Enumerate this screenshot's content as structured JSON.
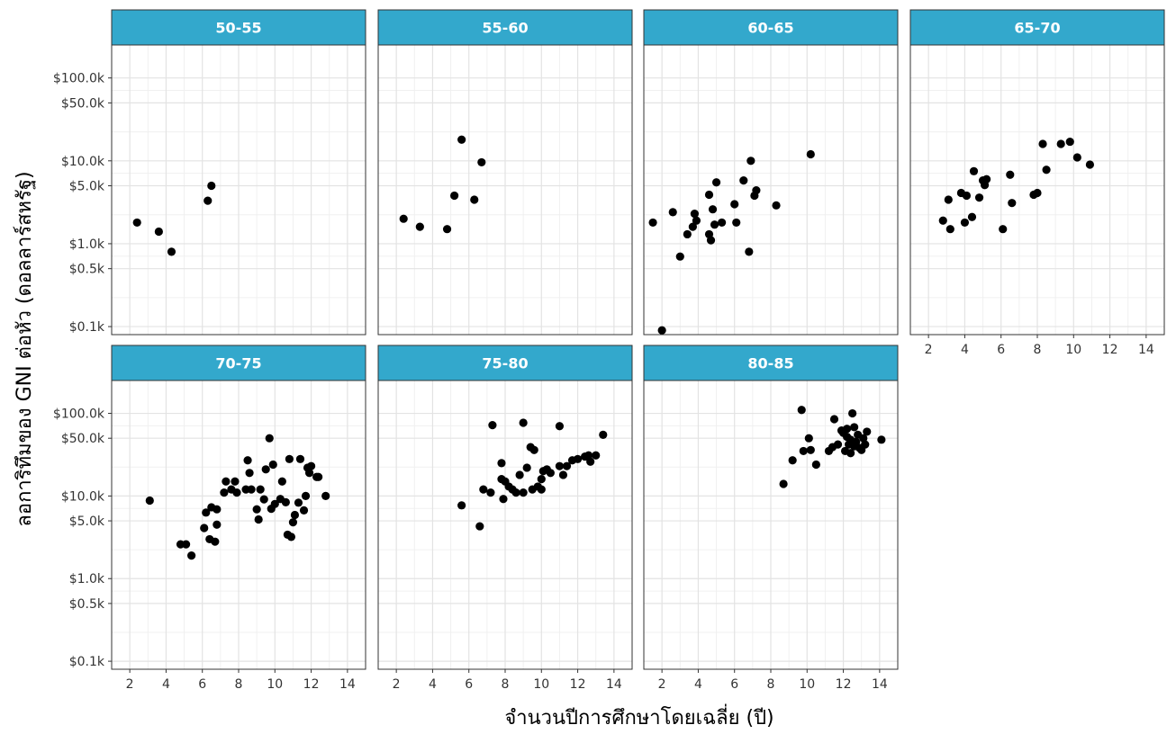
{
  "chart_data": {
    "type": "scatter",
    "xlabel": "จำนวนปีการศึกษาโดยเฉลี่ย (ปี)",
    "ylabel": "ลอการิทึมของ GNI ต่อหัว (ดอลลาร์สหรัฐ)",
    "x_scale": "linear",
    "y_scale": "log10",
    "xlim": [
      1,
      15
    ],
    "ylim": [
      0.08,
      250
    ],
    "x_ticks": [
      2,
      4,
      6,
      8,
      10,
      12,
      14
    ],
    "x_tick_labels": [
      "2",
      "4",
      "6",
      "8",
      "10",
      "12",
      "14"
    ],
    "y_ticks": [
      0.1,
      0.5,
      1,
      5,
      10,
      50,
      100
    ],
    "y_tick_labels": [
      "$0.1k",
      "$0.5k",
      "$1.0k",
      "$5.0k",
      "$10.0k",
      "$50.0k",
      "$100.0k"
    ],
    "y_unit_note": "values in thousands of US dollars",
    "grid": true,
    "strip_color": "#33a8cc",
    "point_color": "#000000",
    "panels": [
      {
        "label": "50-55",
        "points": [
          [
            2.4,
            1.8
          ],
          [
            3.6,
            1.4
          ],
          [
            4.3,
            0.8
          ],
          [
            6.3,
            3.3
          ],
          [
            6.5,
            5.0
          ]
        ]
      },
      {
        "label": "55-60",
        "points": [
          [
            2.4,
            2.0
          ],
          [
            3.3,
            1.6
          ],
          [
            4.8,
            1.5
          ],
          [
            5.2,
            3.8
          ],
          [
            5.6,
            18
          ],
          [
            6.3,
            3.4
          ],
          [
            6.7,
            9.6
          ]
        ]
      },
      {
        "label": "60-65",
        "points": [
          [
            1.5,
            1.8
          ],
          [
            2.0,
            0.09
          ],
          [
            2.6,
            2.4
          ],
          [
            3.0,
            0.7
          ],
          [
            3.4,
            1.3
          ],
          [
            3.7,
            1.6
          ],
          [
            3.8,
            2.3
          ],
          [
            3.9,
            1.9
          ],
          [
            4.6,
            3.9
          ],
          [
            4.6,
            1.3
          ],
          [
            4.7,
            1.1
          ],
          [
            4.8,
            2.6
          ],
          [
            4.9,
            1.7
          ],
          [
            5.0,
            5.5
          ],
          [
            5.3,
            1.8
          ],
          [
            6.0,
            3.0
          ],
          [
            6.1,
            1.8
          ],
          [
            6.5,
            5.8
          ],
          [
            6.8,
            0.8
          ],
          [
            6.9,
            10
          ],
          [
            7.1,
            3.8
          ],
          [
            7.2,
            4.4
          ],
          [
            8.3,
            2.9
          ],
          [
            10.2,
            12
          ]
        ]
      },
      {
        "label": "65-70",
        "points": [
          [
            2.8,
            1.9
          ],
          [
            3.1,
            3.4
          ],
          [
            3.2,
            1.5
          ],
          [
            3.8,
            4.1
          ],
          [
            4.0,
            1.8
          ],
          [
            4.1,
            3.8
          ],
          [
            4.4,
            2.1
          ],
          [
            4.5,
            7.5
          ],
          [
            4.8,
            3.6
          ],
          [
            5.0,
            5.8
          ],
          [
            5.1,
            5.1
          ],
          [
            5.2,
            6.0
          ],
          [
            6.1,
            1.5
          ],
          [
            6.5,
            6.8
          ],
          [
            6.6,
            3.1
          ],
          [
            7.8,
            3.9
          ],
          [
            8.0,
            4.1
          ],
          [
            8.3,
            16
          ],
          [
            8.5,
            7.8
          ],
          [
            9.3,
            16
          ],
          [
            9.8,
            17
          ],
          [
            10.2,
            11
          ],
          [
            10.9,
            9.0
          ]
        ]
      },
      {
        "label": "70-75",
        "points": [
          [
            3.1,
            8.8
          ],
          [
            4.8,
            2.6
          ],
          [
            5.1,
            2.6
          ],
          [
            5.4,
            1.9
          ],
          [
            6.1,
            4.1
          ],
          [
            6.2,
            6.3
          ],
          [
            6.4,
            3.0
          ],
          [
            6.5,
            7.3
          ],
          [
            6.7,
            2.8
          ],
          [
            6.8,
            4.5
          ],
          [
            6.8,
            6.9
          ],
          [
            7.2,
            11
          ],
          [
            7.3,
            15
          ],
          [
            7.6,
            12
          ],
          [
            7.8,
            15
          ],
          [
            7.9,
            11
          ],
          [
            8.4,
            12
          ],
          [
            8.5,
            27
          ],
          [
            8.6,
            19
          ],
          [
            8.7,
            12
          ],
          [
            9.0,
            6.9
          ],
          [
            9.1,
            5.2
          ],
          [
            9.2,
            12
          ],
          [
            9.4,
            9.1
          ],
          [
            9.5,
            21
          ],
          [
            9.7,
            50
          ],
          [
            9.8,
            7.0
          ],
          [
            9.9,
            24
          ],
          [
            10.0,
            8.0
          ],
          [
            10.3,
            9.2
          ],
          [
            10.4,
            15
          ],
          [
            10.6,
            8.4
          ],
          [
            10.7,
            3.4
          ],
          [
            10.8,
            28
          ],
          [
            10.9,
            3.2
          ],
          [
            11.0,
            4.8
          ],
          [
            11.1,
            5.9
          ],
          [
            11.3,
            8.3
          ],
          [
            11.4,
            28
          ],
          [
            11.6,
            6.7
          ],
          [
            11.7,
            10
          ],
          [
            11.8,
            22
          ],
          [
            11.9,
            19
          ],
          [
            12.0,
            23
          ],
          [
            12.3,
            17
          ],
          [
            12.4,
            17
          ],
          [
            12.8,
            10
          ]
        ]
      },
      {
        "label": "75-80",
        "points": [
          [
            5.6,
            7.7
          ],
          [
            6.6,
            4.3
          ],
          [
            6.8,
            12
          ],
          [
            7.2,
            11
          ],
          [
            7.3,
            72
          ],
          [
            7.8,
            16
          ],
          [
            7.8,
            25
          ],
          [
            7.9,
            9.2
          ],
          [
            8.0,
            15
          ],
          [
            8.2,
            13
          ],
          [
            8.4,
            12
          ],
          [
            8.6,
            11
          ],
          [
            8.8,
            18
          ],
          [
            9.0,
            11
          ],
          [
            9.0,
            77
          ],
          [
            9.2,
            22
          ],
          [
            9.4,
            39
          ],
          [
            9.5,
            12
          ],
          [
            9.6,
            36
          ],
          [
            9.8,
            13
          ],
          [
            10.0,
            16
          ],
          [
            10.0,
            12
          ],
          [
            10.1,
            20
          ],
          [
            10.3,
            21
          ],
          [
            10.5,
            19
          ],
          [
            11.0,
            70
          ],
          [
            11.0,
            23
          ],
          [
            11.2,
            18
          ],
          [
            11.4,
            23
          ],
          [
            11.7,
            27
          ],
          [
            12.0,
            28
          ],
          [
            12.4,
            30
          ],
          [
            12.6,
            31
          ],
          [
            12.7,
            26
          ],
          [
            13.0,
            31
          ],
          [
            13.4,
            55
          ]
        ]
      },
      {
        "label": "80-85",
        "points": [
          [
            8.7,
            14
          ],
          [
            9.2,
            27
          ],
          [
            9.7,
            110
          ],
          [
            9.8,
            35
          ],
          [
            10.1,
            50
          ],
          [
            10.2,
            36
          ],
          [
            10.5,
            24
          ],
          [
            11.2,
            35
          ],
          [
            11.4,
            39
          ],
          [
            11.5,
            85
          ],
          [
            11.7,
            42
          ],
          [
            11.9,
            62
          ],
          [
            12.0,
            58
          ],
          [
            12.1,
            35
          ],
          [
            12.2,
            65
          ],
          [
            12.2,
            52
          ],
          [
            12.3,
            42
          ],
          [
            12.4,
            48
          ],
          [
            12.4,
            33
          ],
          [
            12.5,
            100
          ],
          [
            12.6,
            68
          ],
          [
            12.6,
            40
          ],
          [
            12.7,
            45
          ],
          [
            12.8,
            55
          ],
          [
            12.9,
            38
          ],
          [
            13.0,
            36
          ],
          [
            13.1,
            50
          ],
          [
            13.2,
            42
          ],
          [
            13.3,
            60
          ],
          [
            14.1,
            48
          ]
        ]
      }
    ]
  }
}
